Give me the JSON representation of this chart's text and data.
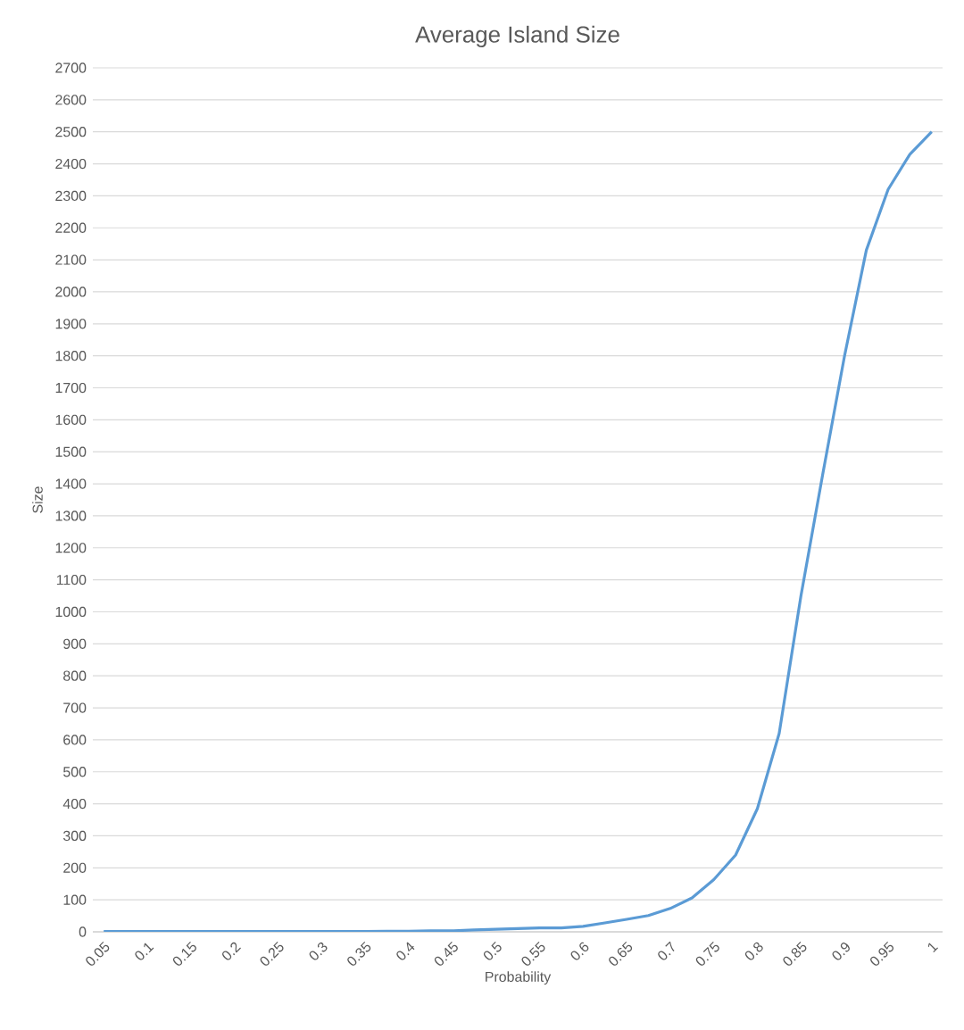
{
  "chart_data": {
    "type": "line",
    "title": "Average Island Size",
    "xlabel": "Probability",
    "ylabel": "Size",
    "categories": [
      "0.05",
      null,
      "0.1",
      null,
      "0.15",
      null,
      "0.2",
      null,
      "0.25",
      null,
      "0.3",
      null,
      "0.35",
      null,
      "0.4",
      null,
      "0.45",
      null,
      "0.5",
      null,
      "0.55",
      null,
      "0.6",
      null,
      "0.65",
      null,
      "0.7",
      null,
      "0.75",
      null,
      "0.8",
      null,
      "0.85",
      null,
      "0.9",
      null,
      "0.95",
      null,
      "1"
    ],
    "series": [
      {
        "color": "#5b9bd5",
        "values": [
          1,
          1,
          1,
          1,
          1,
          1,
          1,
          1,
          1,
          1,
          1,
          1,
          1,
          2,
          2,
          3,
          3,
          6,
          8,
          10,
          12,
          12,
          17,
          28,
          39,
          51,
          73,
          106,
          163,
          240,
          385,
          620,
          1050,
          1430,
          1800,
          2130,
          2320,
          2430,
          2500
        ]
      }
    ],
    "ylim": [
      0,
      2700
    ],
    "yticks": [
      0,
      100,
      200,
      300,
      400,
      500,
      600,
      700,
      800,
      900,
      1000,
      1100,
      1200,
      1300,
      1400,
      1500,
      1600,
      1700,
      1800,
      1900,
      2000,
      2100,
      2200,
      2300,
      2400,
      2500,
      2600,
      2700
    ],
    "grid": "y",
    "marker": "none",
    "line_style": "solid"
  }
}
